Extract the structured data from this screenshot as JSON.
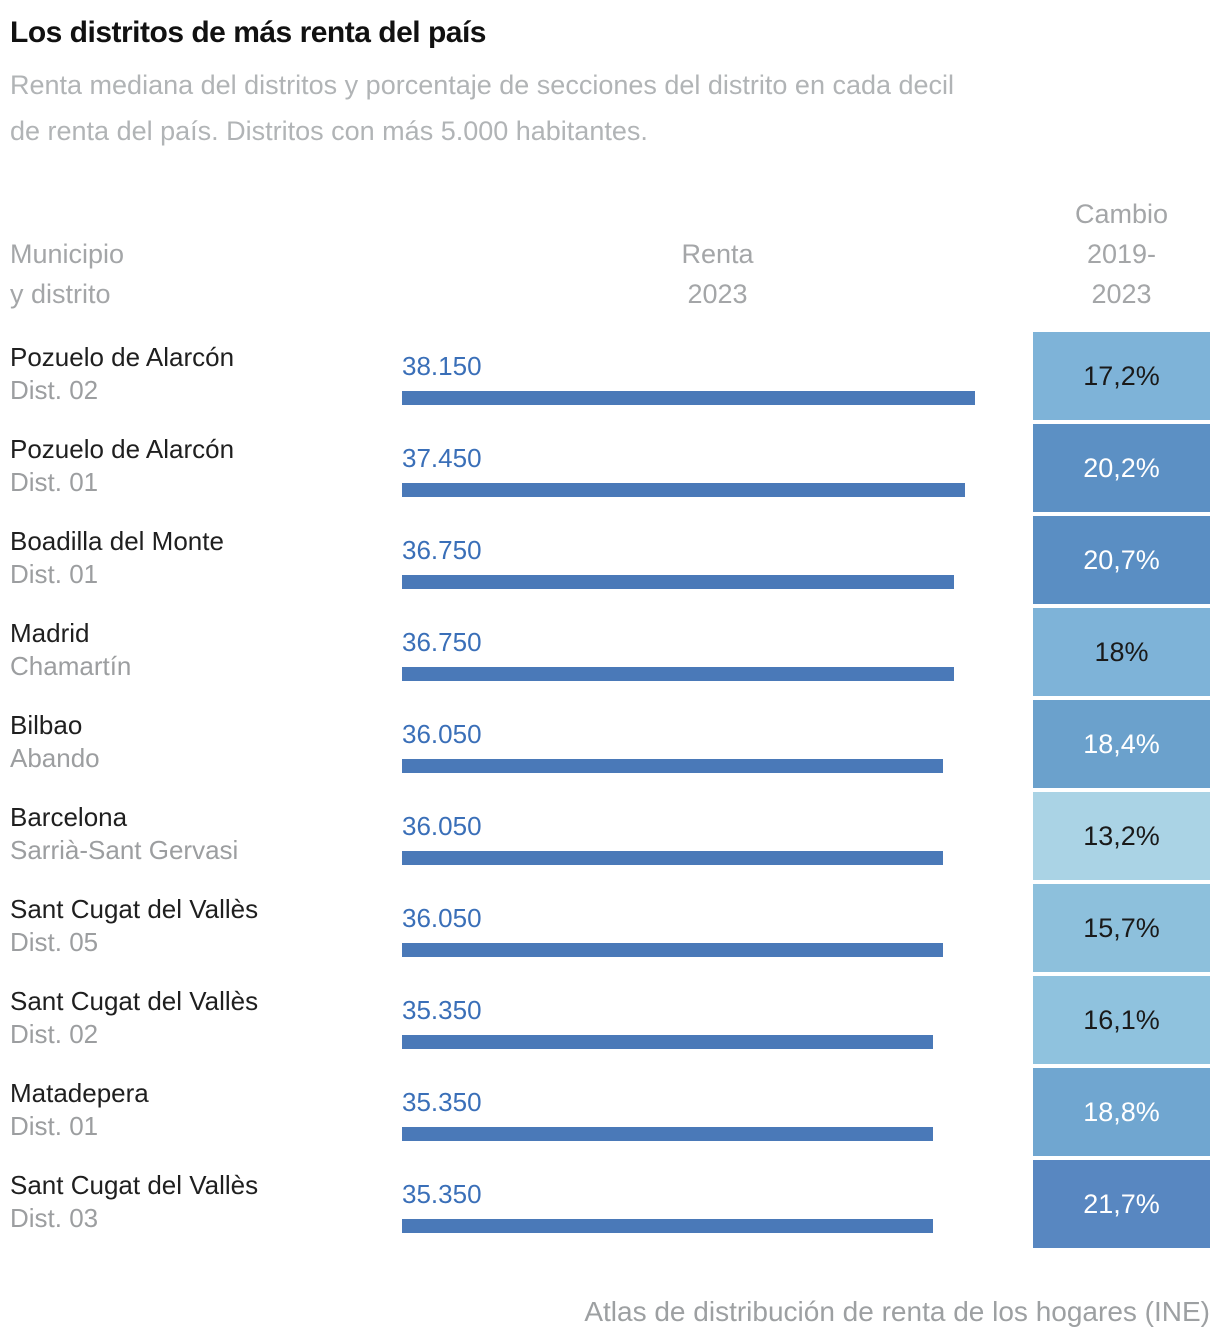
{
  "header": {
    "title": "Los distritos de más renta del país",
    "subtitle_lines": [
      "Renta mediana del distritos y porcentaje de secciones del distrito en cada decil",
      "de renta del país. Distritos con más 5.000 habitantes."
    ]
  },
  "columns": {
    "municipio": [
      "Municipio",
      "y distrito"
    ],
    "renta": [
      "Renta",
      "2023"
    ],
    "cambio": [
      "Cambio",
      "2019-",
      "2023"
    ]
  },
  "colors": {
    "bar": "#4a79b8",
    "value_text": "#3a6fb8"
  },
  "chart_data": {
    "type": "bar",
    "title": "Los distritos de más renta del país",
    "subtitle": "Renta mediana del distritos y porcentaje de secciones del distrito en cada decil de renta del país. Distritos con más 5.000 habitantes.",
    "value_unit": "euros (renta mediana 2023)",
    "value_axis_min": 0,
    "value_axis_max": 38150,
    "grid": false,
    "legend": false,
    "rows": [
      {
        "municipality": "Pozuelo de Alarcón",
        "district": "Dist. 02",
        "renta_2023": 38150,
        "renta_label": "38.150",
        "cambio_pct": 17.2,
        "cambio_label": "17,2%",
        "cell_bg": "#7eb3d8",
        "cell_text": "#1a1a1a"
      },
      {
        "municipality": "Pozuelo de Alarcón",
        "district": "Dist. 01",
        "renta_2023": 37450,
        "renta_label": "37.450",
        "cambio_pct": 20.2,
        "cambio_label": "20,2%",
        "cell_bg": "#5c90c4",
        "cell_text": "#ffffff"
      },
      {
        "municipality": "Boadilla del Monte",
        "district": "Dist. 01",
        "renta_2023": 36750,
        "renta_label": "36.750",
        "cambio_pct": 20.7,
        "cambio_label": "20,7%",
        "cell_bg": "#5a8ec3",
        "cell_text": "#ffffff"
      },
      {
        "municipality": "Madrid",
        "district": "Chamartín",
        "renta_2023": 36750,
        "renta_label": "36.750",
        "cambio_pct": 18.0,
        "cambio_label": "18%",
        "cell_bg": "#7eb3d8",
        "cell_text": "#1a1a1a"
      },
      {
        "municipality": "Bilbao",
        "district": "Abando",
        "renta_2023": 36050,
        "renta_label": "36.050",
        "cambio_pct": 18.4,
        "cambio_label": "18,4%",
        "cell_bg": "#6ba1cc",
        "cell_text": "#ffffff"
      },
      {
        "municipality": "Barcelona",
        "district": "Sarrià-Sant Gervasi",
        "renta_2023": 36050,
        "renta_label": "36.050",
        "cambio_pct": 13.2,
        "cambio_label": "13,2%",
        "cell_bg": "#aad3e5",
        "cell_text": "#1a1a1a"
      },
      {
        "municipality": "Sant Cugat del Vallès",
        "district": "Dist. 05",
        "renta_2023": 36050,
        "renta_label": "36.050",
        "cambio_pct": 15.7,
        "cambio_label": "15,7%",
        "cell_bg": "#8dc0dc",
        "cell_text": "#1a1a1a"
      },
      {
        "municipality": "Sant Cugat del Vallès",
        "district": "Dist. 02",
        "renta_2023": 35350,
        "renta_label": "35.350",
        "cambio_pct": 16.1,
        "cambio_label": "16,1%",
        "cell_bg": "#8fc2de",
        "cell_text": "#1a1a1a"
      },
      {
        "municipality": "Matadepera",
        "district": "Dist. 01",
        "renta_2023": 35350,
        "renta_label": "35.350",
        "cambio_pct": 18.8,
        "cambio_label": "18,8%",
        "cell_bg": "#70a6d0",
        "cell_text": "#ffffff"
      },
      {
        "municipality": "Sant Cugat del Vallès",
        "district": "Dist. 03",
        "renta_2023": 35350,
        "renta_label": "35.350",
        "cambio_pct": 21.7,
        "cambio_label": "21,7%",
        "cell_bg": "#5887c1",
        "cell_text": "#ffffff"
      }
    ],
    "source": "Atlas de distribución de renta de los hogares (INE)"
  },
  "footer": {
    "source": "Atlas de distribución de renta de los hogares (INE)"
  }
}
